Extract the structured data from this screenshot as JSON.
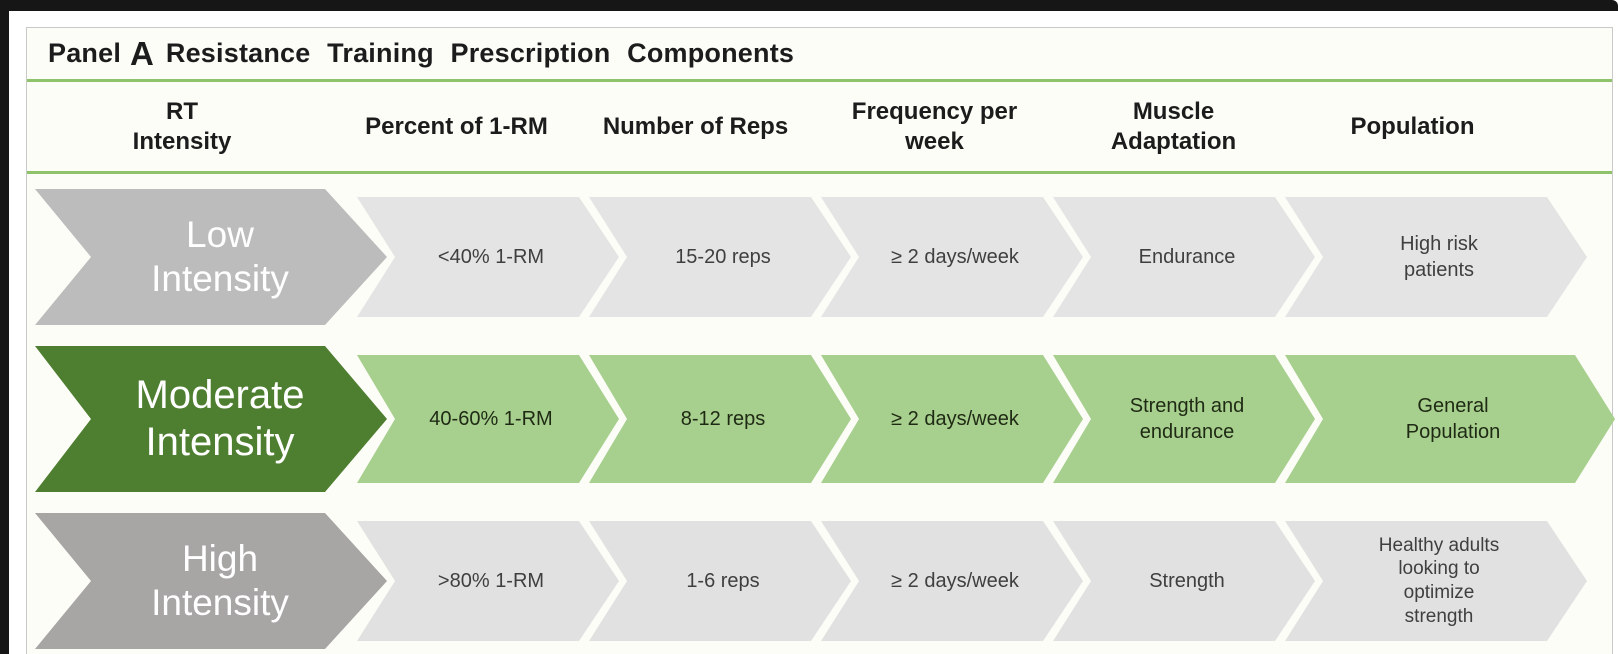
{
  "panel": {
    "title_word": "Panel",
    "title_letter": "A",
    "title_rest": "Resistance Training Prescription Components"
  },
  "header": {
    "columns": [
      "RT\nIntensity",
      "Percent of 1-RM",
      "Number of Reps",
      "Frequency per\nweek",
      "Muscle\nAdaptation",
      "Population"
    ]
  },
  "rows": [
    {
      "intensity": "Low\nIntensity",
      "cells": [
        "<40% 1-RM",
        "15-20 reps",
        "≥ 2 days/week",
        "Endurance",
        "High risk\npatients"
      ]
    },
    {
      "intensity": "Moderate\nIntensity",
      "cells": [
        "40-60% 1-RM",
        "8-12 reps",
        "≥ 2 days/week",
        "Strength and\nendurance",
        "General\nPopulation"
      ]
    },
    {
      "intensity": "High\nIntensity",
      "cells": [
        ">80% 1-RM",
        "1-6 reps",
        "≥ 2 days/week",
        "Strength",
        "Healthy adults\nlooking to\noptimize\nstrength"
      ]
    }
  ],
  "colors": {
    "frame": "#161616",
    "panel_bg": "#fdfdf8",
    "panel_border": "#c9c9c9",
    "divider_green": "#8fc36b",
    "low_arrow": "#bcbcbc",
    "low_cell": "#e5e4e4",
    "moderate_arrow": "#4e7e2f",
    "moderate_cell": "#a7cf8d",
    "high_arrow": "#a8a5a5",
    "high_cell": "#e2e1e1",
    "arrow_text": "#ffffff",
    "cell_text": "#3f3f3f",
    "moderate_cell_text": "#1f2a14",
    "heading_text": "#1c1c1c"
  }
}
